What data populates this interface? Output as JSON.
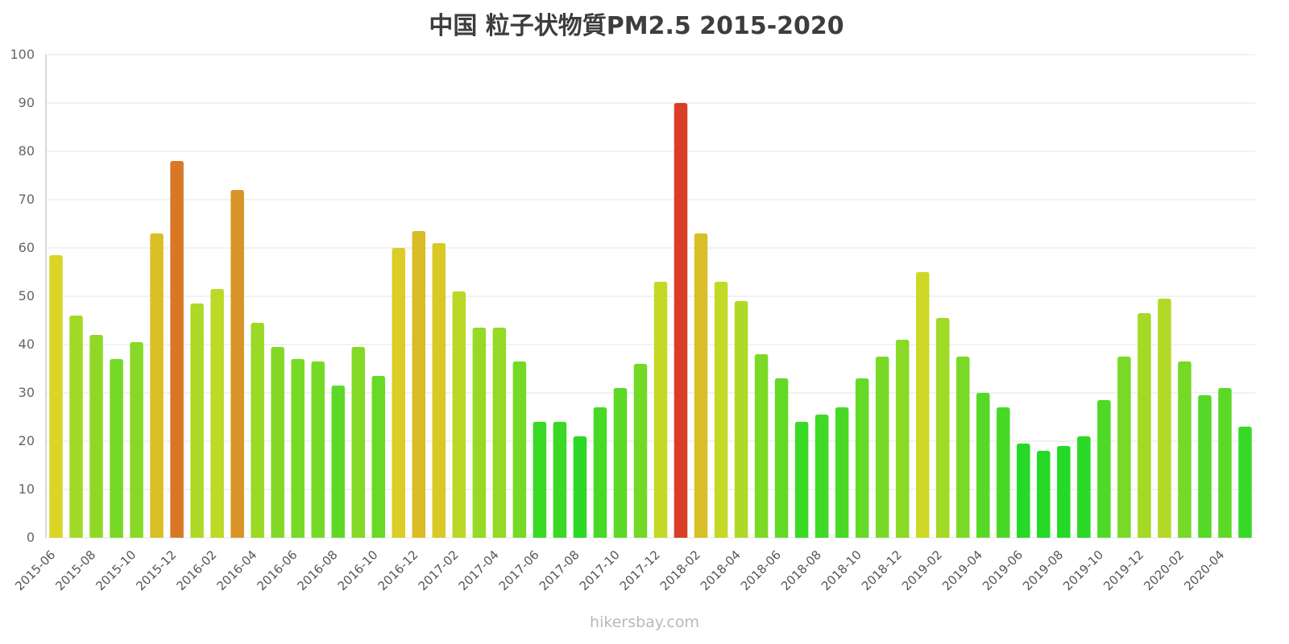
{
  "title": "中国 粒子状物質PM2.5 2015-2020",
  "watermark": "hikersbay.com",
  "colors": {
    "low_value_green": "#29cb29",
    "mid_value_yellow": "#d6cd26",
    "high_value_orange": "#e07a2c",
    "extreme_value_red": "#e23b2e",
    "grid_line": "#e4e4e4",
    "axis_line": "#cccccc",
    "axis_text": "#666666",
    "title_text": "#3d3d3d",
    "watermark_text": "#b4bac0"
  },
  "chart_data": {
    "type": "bar",
    "title": "中国 粒子状物質PM2.5 2015-2020",
    "xlabel": "",
    "ylabel": "",
    "ylim": [
      0,
      100
    ],
    "ytick_step": 10,
    "yticks": [
      0,
      10,
      20,
      30,
      40,
      50,
      60,
      70,
      80,
      90,
      100
    ],
    "grid": true,
    "legend": false,
    "xtick_label_every": 2,
    "x": [
      "2015-06",
      "2015-07",
      "2015-08",
      "2015-09",
      "2015-10",
      "2015-11",
      "2015-12",
      "2016-01",
      "2016-02",
      "2016-03",
      "2016-04",
      "2016-05",
      "2016-06",
      "2016-07",
      "2016-08",
      "2016-09",
      "2016-10",
      "2016-11",
      "2016-12",
      "2017-01",
      "2017-02",
      "2017-03",
      "2017-04",
      "2017-05",
      "2017-06",
      "2017-07",
      "2017-08",
      "2017-09",
      "2017-10",
      "2017-11",
      "2017-12",
      "2018-01",
      "2018-02",
      "2018-03",
      "2018-04",
      "2018-05",
      "2018-06",
      "2018-07",
      "2018-08",
      "2018-09",
      "2018-10",
      "2018-11",
      "2018-12",
      "2019-01",
      "2019-02",
      "2019-03",
      "2019-04",
      "2019-05",
      "2019-06",
      "2019-07",
      "2019-08",
      "2019-09",
      "2019-10",
      "2019-11",
      "2019-12",
      "2020-01",
      "2020-02",
      "2020-03",
      "2020-04",
      "2020-05"
    ],
    "values": [
      58.5,
      46,
      42,
      37,
      40.5,
      63,
      78,
      48.5,
      51.5,
      72,
      44.5,
      39.5,
      37,
      36.5,
      31.5,
      39.5,
      33.5,
      60,
      63.5,
      61,
      51,
      43.5,
      43.5,
      36.5,
      24,
      24,
      21,
      27,
      31,
      36,
      53,
      90,
      63,
      53,
      49,
      38,
      33,
      24,
      25.5,
      27,
      33,
      37.5,
      41,
      55,
      45.5,
      37.5,
      30,
      27,
      19.5,
      18,
      19,
      21,
      28.5,
      37.5,
      46.5,
      49.5,
      36.5,
      29.5,
      31,
      23
    ],
    "color_scale": {
      "description": "bar color mapped from value: green (low) through yellow and orange to red (high)",
      "value_base": 20,
      "hue_base": 120,
      "hue_per_unit": -1.6,
      "hue_min": 0,
      "hue_max": 120,
      "saturation": "70%",
      "lightness": "50%"
    }
  }
}
